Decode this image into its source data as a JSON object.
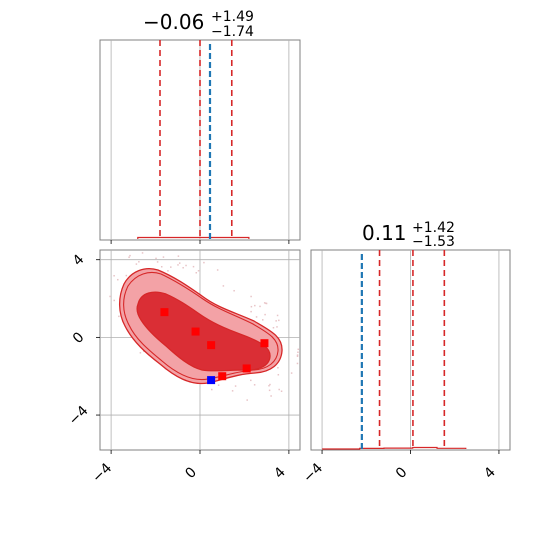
{
  "chart_data": [
    {
      "type": "histogram",
      "panel": "top-left",
      "title": {
        "value": "−0.06",
        "upper": "+1.49",
        "lower": "−1.74"
      },
      "xlim": [
        -4.5,
        4.5
      ],
      "xticks": [
        -4,
        0,
        4
      ],
      "grid": true,
      "quantile_lines": [
        -1.8,
        0.0,
        1.43
      ],
      "truth_line": 0.45,
      "colors": {
        "hist": "#d62728",
        "quantiles": "#d62728",
        "truth": "#1f77b4"
      }
    },
    {
      "type": "scatter",
      "panel": "bottom-left",
      "xlim": [
        -4.5,
        4.5
      ],
      "ylim": [
        -5.8,
        4.5
      ],
      "xticks": [
        -4,
        0,
        4
      ],
      "yticks": [
        -4,
        0,
        4
      ],
      "xtick_labels": [
        "−4",
        "0",
        "4"
      ],
      "ytick_labels": [
        "−4",
        "0",
        "4"
      ],
      "grid": true,
      "red_points": [
        {
          "x": -1.6,
          "y": 1.3
        },
        {
          "x": -0.2,
          "y": 0.3
        },
        {
          "x": 0.5,
          "y": -0.4
        },
        {
          "x": 2.9,
          "y": -0.3
        },
        {
          "x": 2.1,
          "y": -1.6
        },
        {
          "x": 1.0,
          "y": -2.0
        }
      ],
      "blue_points": [
        {
          "x": 0.5,
          "y": -2.2
        }
      ],
      "colors": {
        "contour": "#d62728",
        "fill_outer": "#f3a2a6",
        "fill_inner": "#da2e35",
        "truth": "#0000ff",
        "points": "#ff0000"
      }
    },
    {
      "type": "histogram",
      "panel": "bottom-right",
      "title": {
        "value": "0.11",
        "upper": "+1.42",
        "lower": "−1.53"
      },
      "xlim": [
        -4.5,
        4.5
      ],
      "xticks": [
        -4,
        0,
        4
      ],
      "xtick_labels": [
        "−4",
        "0",
        "4"
      ],
      "grid": true,
      "quantile_lines": [
        -1.4,
        0.11,
        1.53
      ],
      "truth_line": -2.2,
      "colors": {
        "hist": "#d62728",
        "quantiles": "#d62728",
        "truth": "#1f77b4"
      }
    }
  ]
}
